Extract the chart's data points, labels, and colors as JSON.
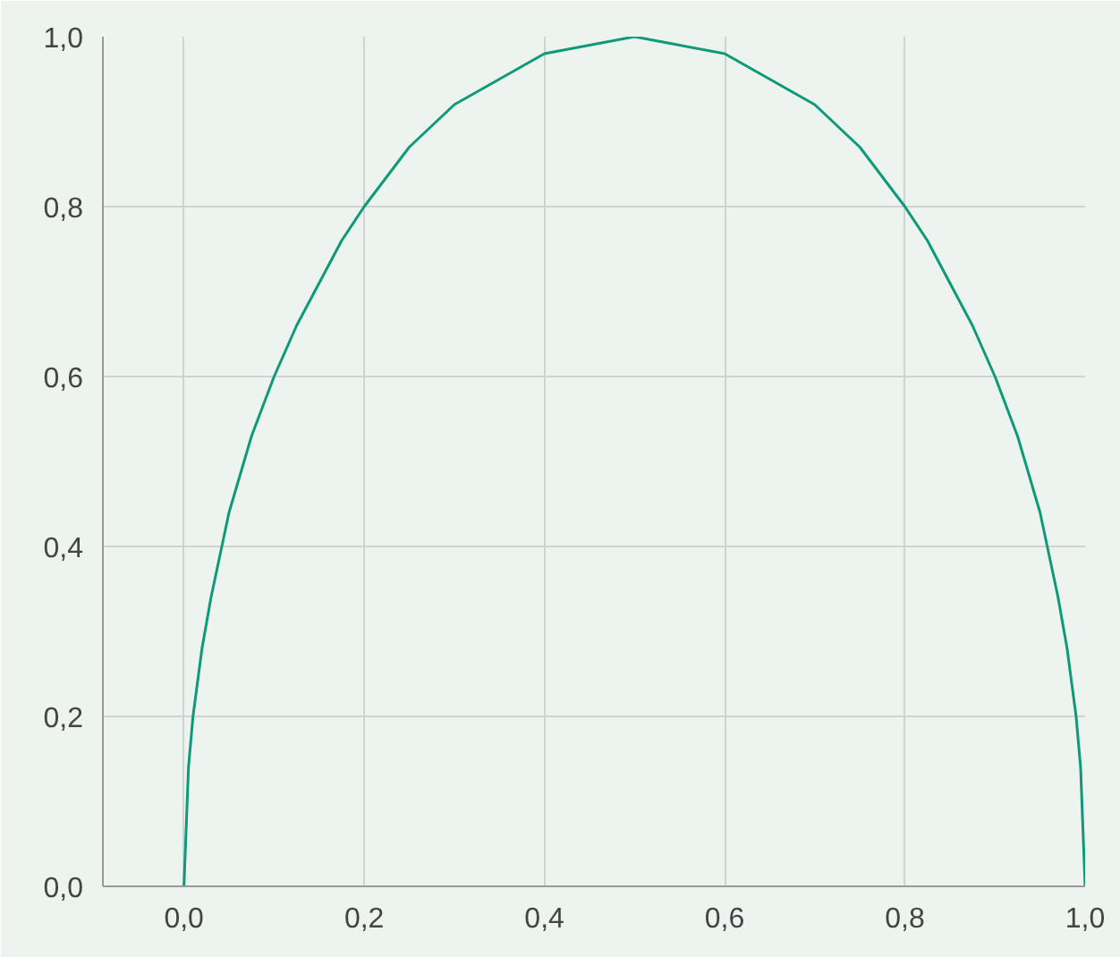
{
  "chart_data": {
    "type": "line",
    "x": [
      0,
      0.005,
      0.01,
      0.02,
      0.03,
      0.05,
      0.075,
      0.1,
      0.125,
      0.15,
      0.175,
      0.2,
      0.25,
      0.3,
      0.35,
      0.4,
      0.45,
      0.5,
      0.55,
      0.6,
      0.65,
      0.7,
      0.75,
      0.8,
      0.825,
      0.85,
      0.875,
      0.9,
      0.925,
      0.95,
      0.97,
      0.98,
      0.99,
      0.995,
      1
    ],
    "series": [
      {
        "color": "#0e9a78",
        "values": [
          0,
          0.14,
          0.2,
          0.28,
          0.34,
          0.44,
          0.53,
          0.6,
          0.66,
          0.71,
          0.76,
          0.8,
          0.87,
          0.92,
          0.95,
          0.98,
          0.99,
          1.0,
          0.99,
          0.98,
          0.95,
          0.92,
          0.87,
          0.8,
          0.76,
          0.71,
          0.66,
          0.6,
          0.53,
          0.44,
          0.34,
          0.28,
          0.2,
          0.14,
          0
        ]
      }
    ],
    "xlim": [
      -0.09,
      1.0
    ],
    "ylim": [
      0,
      1.0
    ],
    "xticks": [
      {
        "value": 0,
        "label": "0,0"
      },
      {
        "value": 0.2,
        "label": "0,2"
      },
      {
        "value": 0.4,
        "label": "0,4"
      },
      {
        "value": 0.6,
        "label": "0,6"
      },
      {
        "value": 0.8,
        "label": "0,8"
      },
      {
        "value": 1.0,
        "label": "1,0"
      }
    ],
    "yticks": [
      {
        "value": 0,
        "label": "0,0"
      },
      {
        "value": 0.2,
        "label": "0,2"
      },
      {
        "value": 0.4,
        "label": "0,4"
      },
      {
        "value": 0.6,
        "label": "0,6"
      },
      {
        "value": 0.8,
        "label": "0,8"
      },
      {
        "value": 1.0,
        "label": "1,0"
      }
    ],
    "grid": true,
    "marker": "none",
    "line_style": "solid"
  }
}
